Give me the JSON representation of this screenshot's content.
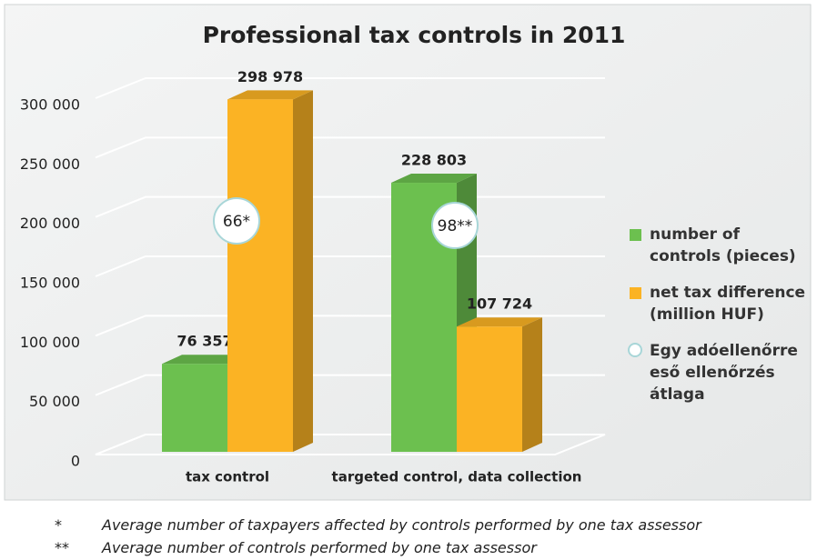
{
  "chart_data": {
    "type": "bar3d",
    "title": "Professional tax controls in 2011",
    "categories": [
      "tax control",
      "targeted control, data collection"
    ],
    "series": [
      {
        "name": "number of controls (pieces)",
        "color": "#6cc04f",
        "values": [
          76357,
          228803
        ],
        "value_labels": [
          "76 357",
          "228 803"
        ]
      },
      {
        "name": "net tax difference (million HUF)",
        "color": "#fbb324",
        "values": [
          298978,
          107724
        ],
        "value_labels": [
          "298 978",
          "107 724"
        ]
      }
    ],
    "annotations": [
      "66*",
      "98**"
    ],
    "annotation_legend": "Egy adóellenőrre eső ellenőrzés átlaga",
    "ylim": [
      0,
      300000
    ],
    "yticks": [
      0,
      {
        "value": 50000,
        "label": "50 000"
      },
      {
        "value": 100000,
        "label": "100 000"
      },
      {
        "value": 150000,
        "label": "150 000"
      },
      {
        "value": 200000,
        "label": "200 000"
      },
      {
        "value": 250000,
        "label": "250 000"
      },
      {
        "value": 300000,
        "label": "300 000"
      }
    ],
    "grid": true,
    "legend": "right",
    "footnotes": [
      {
        "mark": "*",
        "text": "Average number of taxpayers affected by controls performed by one tax assessor"
      },
      {
        "mark": "**",
        "text": "Average number of controls performed by one tax assessor"
      }
    ]
  }
}
